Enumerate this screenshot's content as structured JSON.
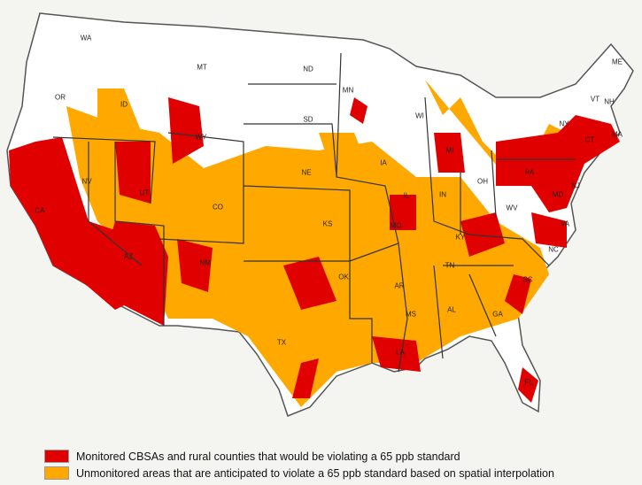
{
  "colors": {
    "monitored": "#e00000",
    "unmonitored": "#ffa800",
    "land": "#ffffff",
    "border": "#555555",
    "background": "#f4f4f0"
  },
  "states": [
    "WA",
    "OR",
    "ID",
    "MT",
    "ND",
    "SD",
    "WY",
    "NV",
    "UT",
    "CO",
    "CA",
    "AZ",
    "NM",
    "NE",
    "KS",
    "OK",
    "TX",
    "MN",
    "IA",
    "MO",
    "AR",
    "LA",
    "WI",
    "MI",
    "IL",
    "IN",
    "OH",
    "KY",
    "TN",
    "MS",
    "AL",
    "GA",
    "FL",
    "SC",
    "NC",
    "VA",
    "WV",
    "PA",
    "NY",
    "VT",
    "NH",
    "ME",
    "MA",
    "CT",
    "NJ",
    "MD"
  ],
  "legend": [
    {
      "label": "Monitored CBSAs and rural counties that would be violating a 65 ppb standard",
      "color": "#e00000"
    },
    {
      "label": "Unmonitored areas that are anticipated to violate a 65 ppb standard based on spatial interpolation",
      "color": "#ffa800"
    }
  ]
}
